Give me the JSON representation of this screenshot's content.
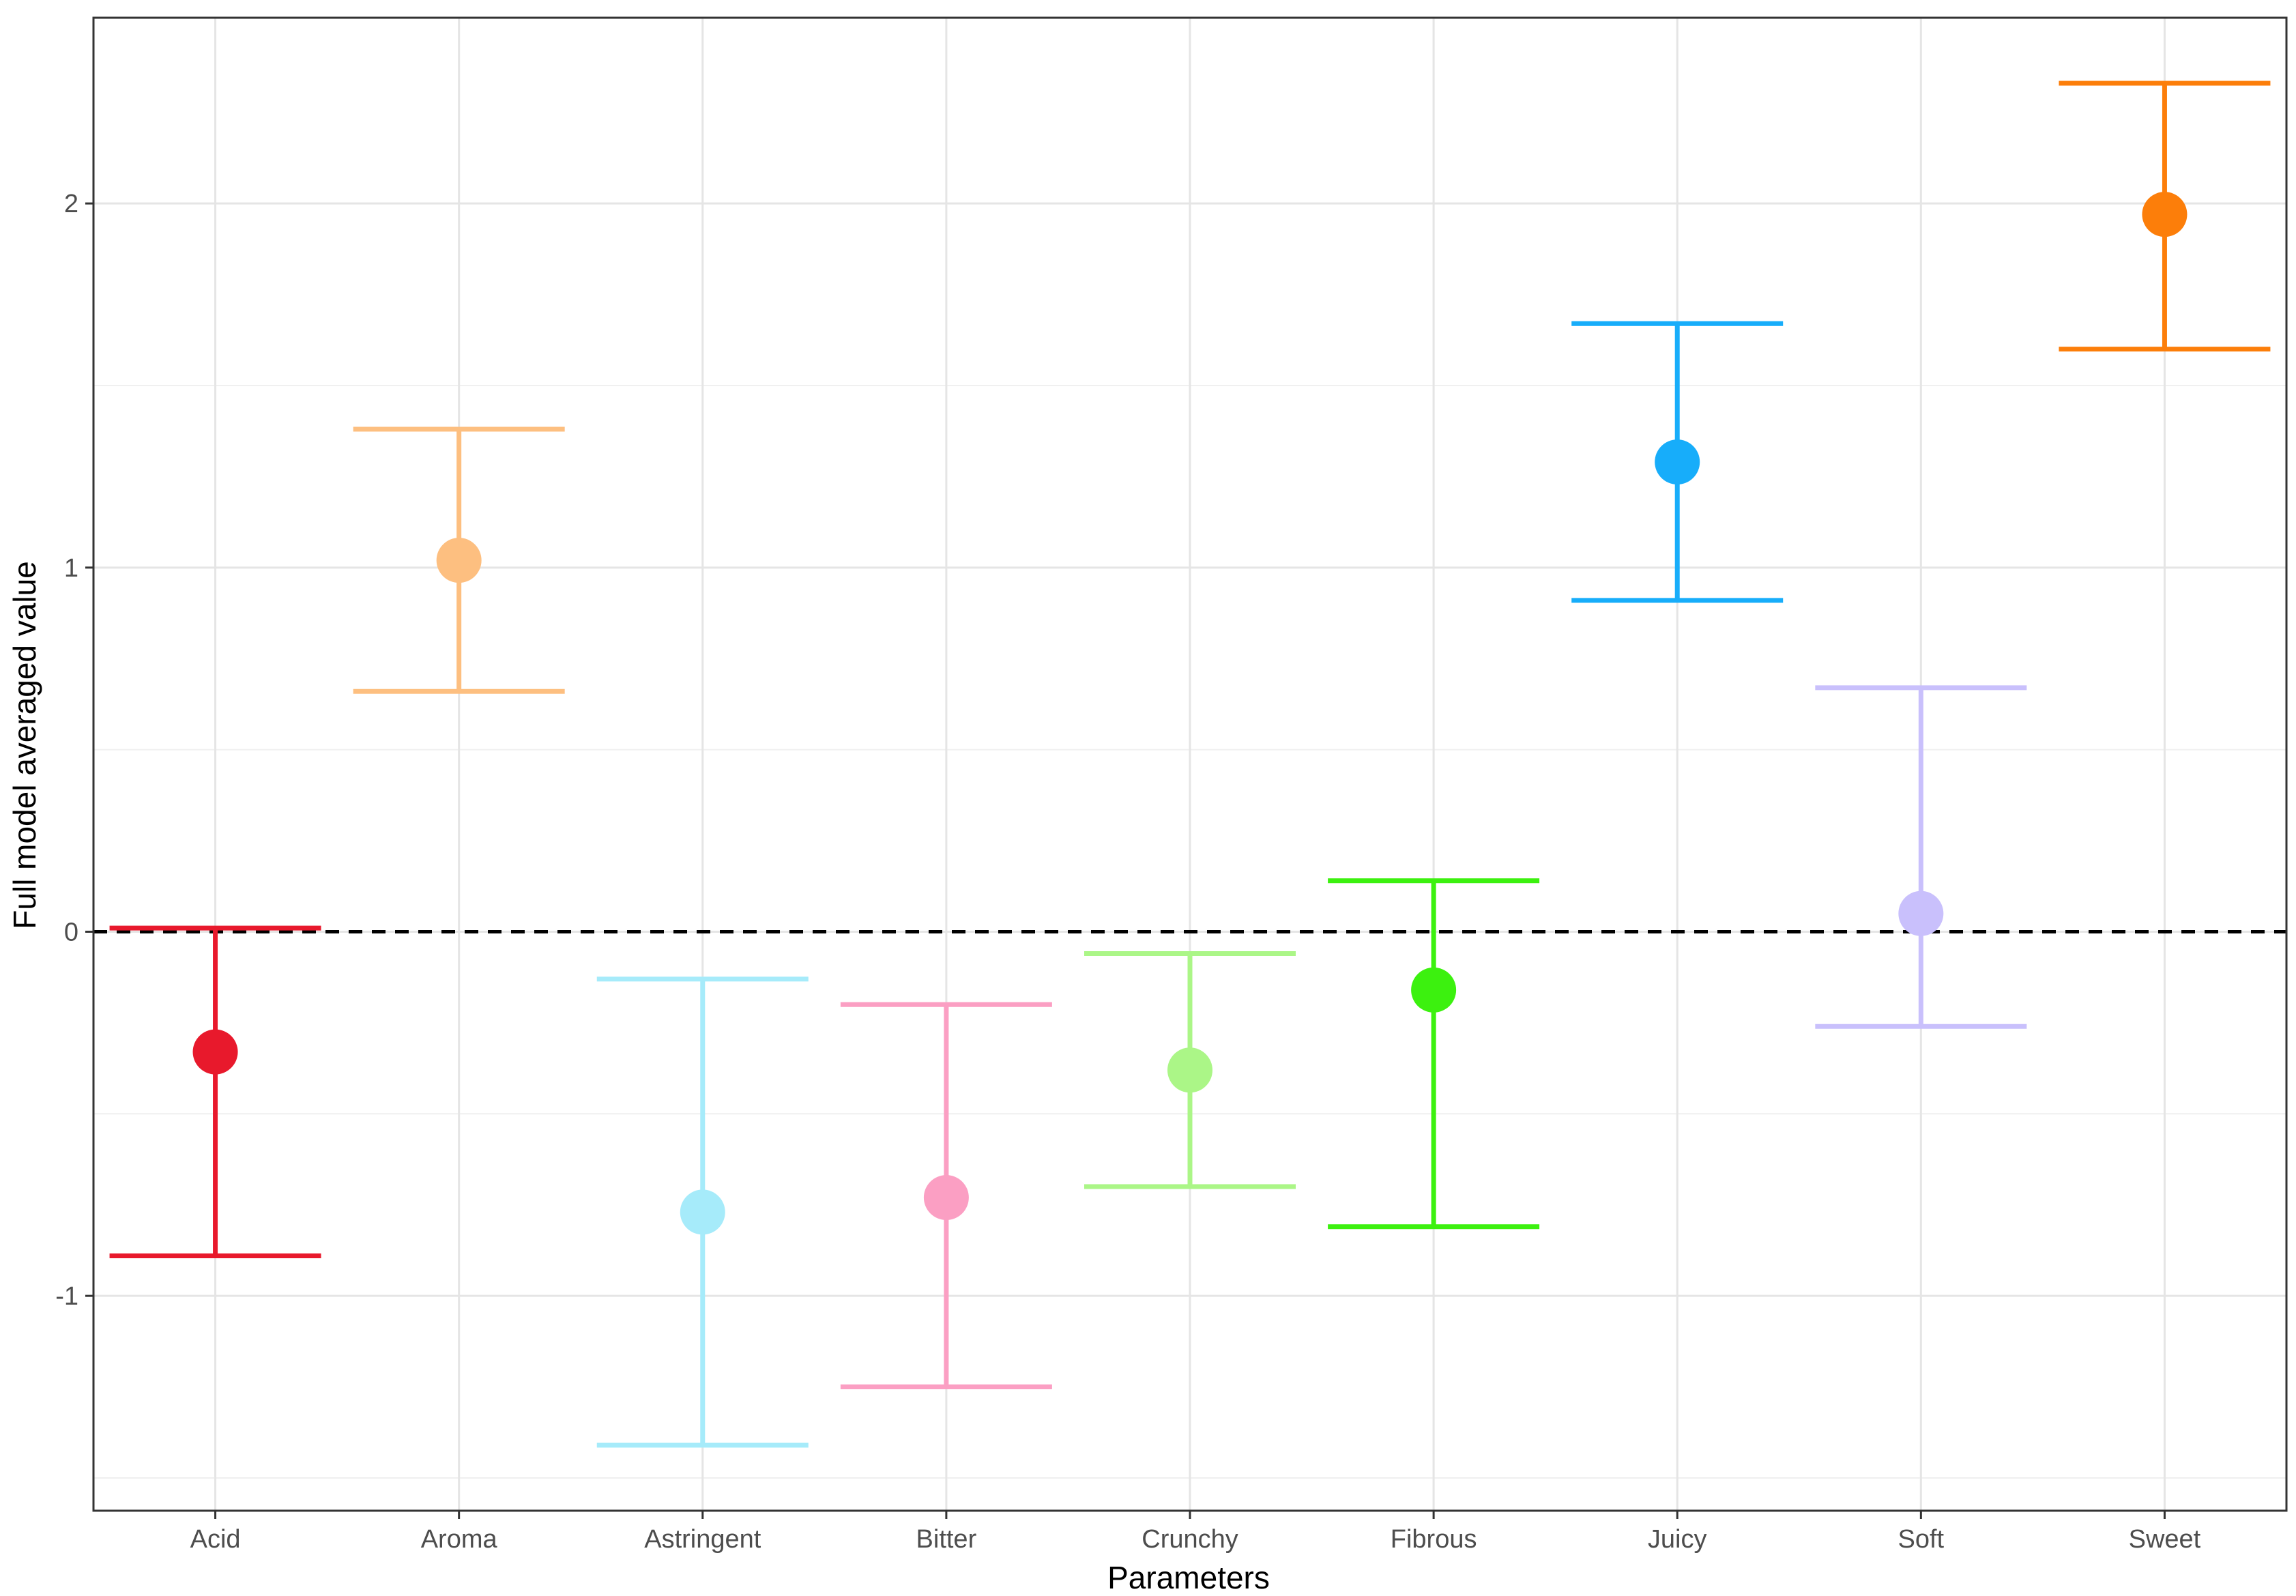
{
  "chart_data": {
    "type": "errorbar",
    "title": "",
    "xlabel": "Parameters",
    "ylabel": "Full model averaged value",
    "ylim": [
      -1.59,
      2.51
    ],
    "y_ticks": [
      -1,
      0,
      1,
      2
    ],
    "y_tick_labels": [
      "-1",
      "0",
      "1",
      "2"
    ],
    "y_minor_ticks": [
      -1.5,
      -0.5,
      0.5,
      1.5
    ],
    "reference_line": 0,
    "grid": true,
    "categories": [
      "Acid",
      "Aroma",
      "Astringent",
      "Bitter",
      "Crunchy",
      "Fibrous",
      "Juicy",
      "Soft",
      "Sweet"
    ],
    "estimates": [
      -0.33,
      1.02,
      -0.77,
      -0.73,
      -0.38,
      -0.16,
      1.29,
      0.05,
      1.97
    ],
    "lower": [
      -0.89,
      0.66,
      -1.41,
      -1.25,
      -0.7,
      -0.81,
      0.91,
      -0.26,
      1.6
    ],
    "upper": [
      0.01,
      1.38,
      -0.13,
      -0.2,
      -0.06,
      0.14,
      1.67,
      0.67,
      2.33
    ],
    "colors": [
      "#e8192c",
      "#fdbf80",
      "#a6ebfa",
      "#fb9fc3",
      "#abf687",
      "#3cf10f",
      "#17adfa",
      "#c9c0fc",
      "#fc7e0a"
    ]
  }
}
